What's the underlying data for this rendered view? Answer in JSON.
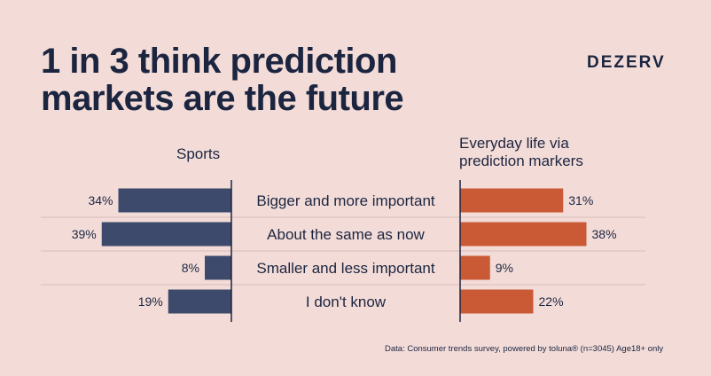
{
  "title": "1 in 3 think prediction markets are the future",
  "brand": "DEZERV",
  "footnote": "Data: Consumer trends survey, powered by toluna® (n=3045) Age18+ only",
  "colors": {
    "left": "#3d4a6b",
    "right": "#c95a35",
    "text": "#1c2540",
    "divider": "#d9bdb9"
  },
  "chart_data": {
    "type": "bar",
    "categories": [
      "Bigger and more important",
      "About the same as now",
      "Smaller and less important",
      "I don't know"
    ],
    "series": [
      {
        "name": "Sports",
        "values": [
          34,
          39,
          8,
          19
        ],
        "labels": [
          "34%",
          "39%",
          "8%",
          "19%"
        ]
      },
      {
        "name": "Everyday life via prediction markers",
        "values": [
          31,
          38,
          9,
          22
        ],
        "labels": [
          "31%",
          "38%",
          "9%",
          "22%"
        ]
      }
    ],
    "unit": "%"
  }
}
